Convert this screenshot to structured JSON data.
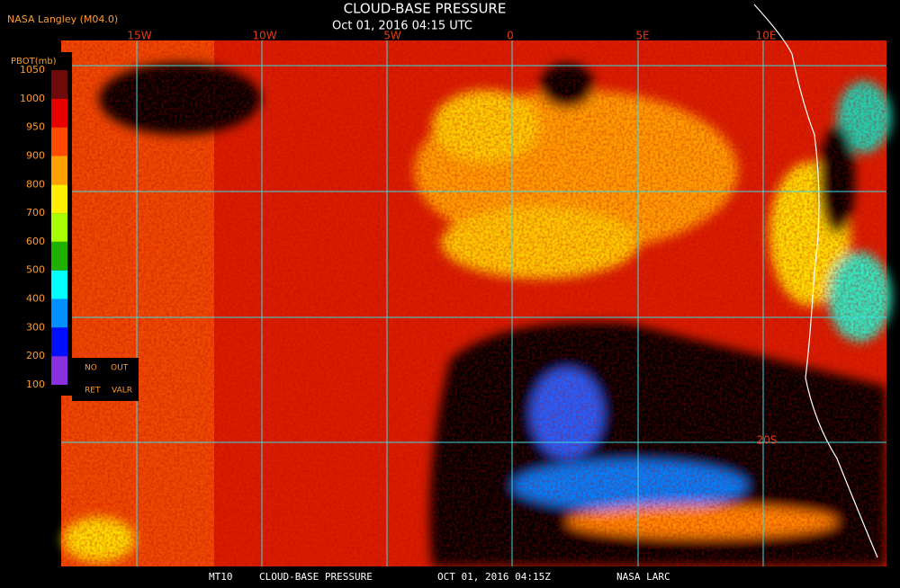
{
  "header": {
    "source": "NASA Langley (M04.0)",
    "title": "CLOUD-BASE PRESSURE",
    "subtitle": "Oct 01, 2016 04:15 UTC"
  },
  "legend": {
    "label": "PBOT(mb)",
    "ticks": [
      1050,
      1000,
      950,
      900,
      800,
      700,
      600,
      500,
      400,
      300,
      200,
      100
    ],
    "colors": [
      "#6e0a0a",
      "#e80000",
      "#ff4a00",
      "#ffa000",
      "#ffee00",
      "#a8ff00",
      "#20b000",
      "#00ffff",
      "#0090ff",
      "#0010ff",
      "#8a30e0"
    ],
    "no_retrieval": [
      "NO",
      "OUT",
      "RET",
      "VALR"
    ]
  },
  "map": {
    "lon_labels": [
      "15W",
      "10W",
      "5W",
      "0",
      "5E",
      "10E"
    ],
    "lat_labels": [
      "20S"
    ]
  },
  "footer": [
    "MT10",
    "CLOUD-BASE PRESSURE",
    "OCT 01, 2016 04:15Z",
    "NASA LARC"
  ]
}
